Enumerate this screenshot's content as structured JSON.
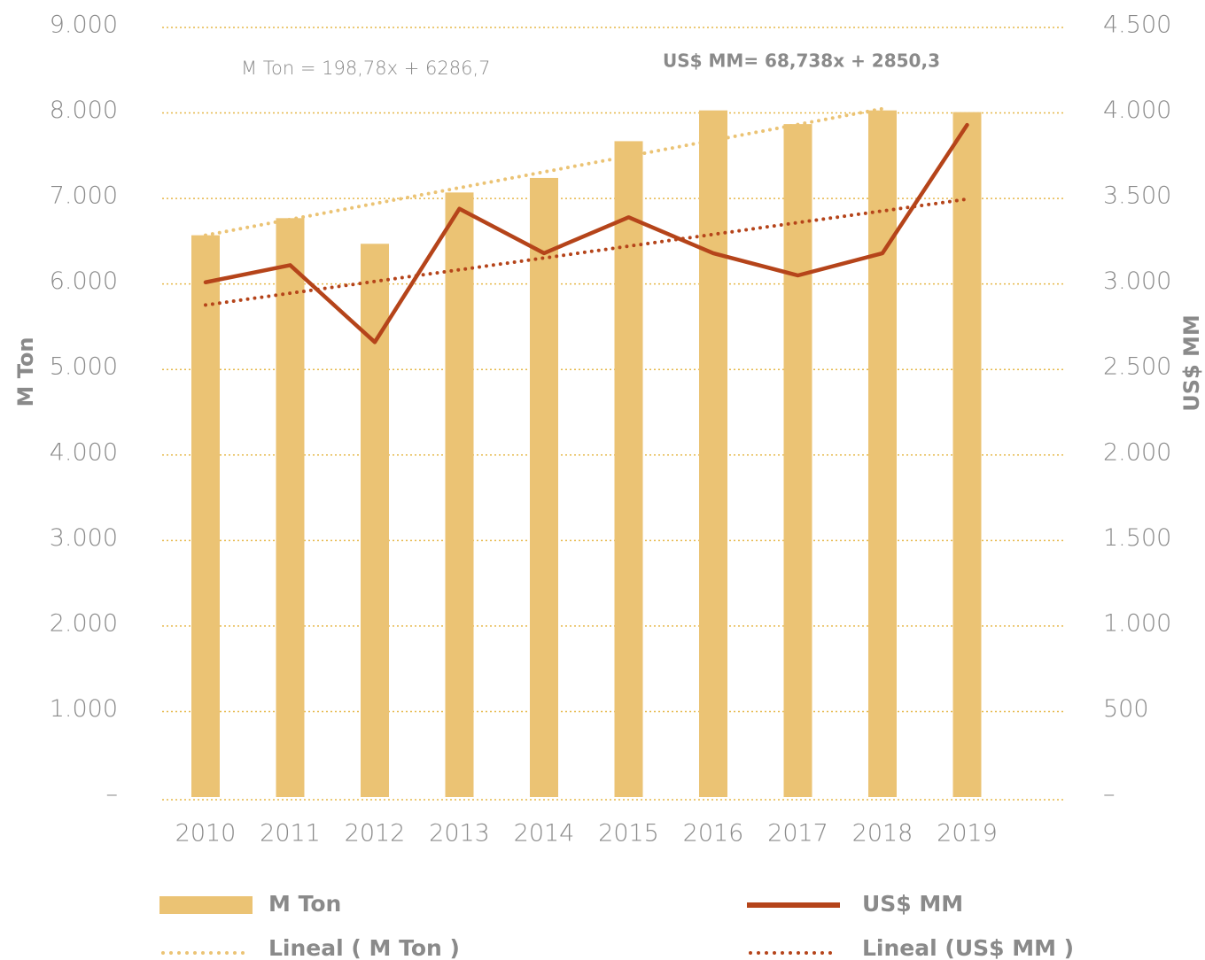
{
  "chart_data": {
    "type": "bar",
    "categories": [
      "2010",
      "2011",
      "2012",
      "2013",
      "2014",
      "2015",
      "2016",
      "2017",
      "2018",
      "2019"
    ],
    "y_label": "M Ton",
    "y2_label": "US$ MM",
    "annotations": [
      "M Ton = 198,78x + 6286,7",
      "US$ MM= 68,738x + 2850,3"
    ],
    "ylim": [
      0,
      9000
    ],
    "yticks": [
      {
        "value": 0,
        "label": "–"
      },
      {
        "value": 1000,
        "label": "1.000"
      },
      {
        "value": 2000,
        "label": "2.000"
      },
      {
        "value": 3000,
        "label": "3.000"
      },
      {
        "value": 4000,
        "label": "4.000"
      },
      {
        "value": 5000,
        "label": "5.000"
      },
      {
        "value": 6000,
        "label": "6.000"
      },
      {
        "value": 7000,
        "label": "7.000"
      },
      {
        "value": 8000,
        "label": "8.000"
      },
      {
        "value": 9000,
        "label": "9.000"
      }
    ],
    "y2lim": [
      0,
      4500
    ],
    "y2ticks": [
      {
        "value": 0,
        "label": "–"
      },
      500,
      {
        "value": 1000,
        "label": "1.000"
      },
      {
        "value": 1500,
        "label": "1.500"
      },
      {
        "value": 2000,
        "label": "2.000"
      },
      {
        "value": 2500,
        "label": "2.500"
      },
      {
        "value": 3000,
        "label": "3.000"
      },
      {
        "value": 3500,
        "label": "3.500"
      },
      {
        "value": 4000,
        "label": "4.000"
      },
      {
        "value": 4500,
        "label": "4.500"
      }
    ],
    "grid": true,
    "series": [
      {
        "name": "M Ton",
        "type": "bar",
        "color": "#ebc374",
        "values": [
          6570,
          6770,
          6470,
          7070,
          7240,
          7670,
          8030,
          7870,
          8030,
          8010
        ]
      },
      {
        "name": "US$ MM",
        "type": "line",
        "axis": "y2",
        "color": "#b5441a",
        "values": [
          3010,
          3110,
          2660,
          3440,
          3180,
          3390,
          3180,
          3050,
          3180,
          3930
        ]
      },
      {
        "name": "Lineal ( M Ton )",
        "type": "line",
        "style": "dotted",
        "color": "#ebc374",
        "values": [
          6570,
          6755,
          6940,
          7125,
          7310,
          7495,
          7680,
          7865,
          8050,
          null
        ]
      },
      {
        "name": "Lineal (US$ MM )",
        "type": "line",
        "style": "dotted",
        "axis": "y2",
        "color": "#b5441a",
        "values": [
          2877,
          2946,
          3015,
          3083,
          3152,
          3221,
          3290,
          3359,
          3427,
          3496
        ]
      }
    ]
  }
}
